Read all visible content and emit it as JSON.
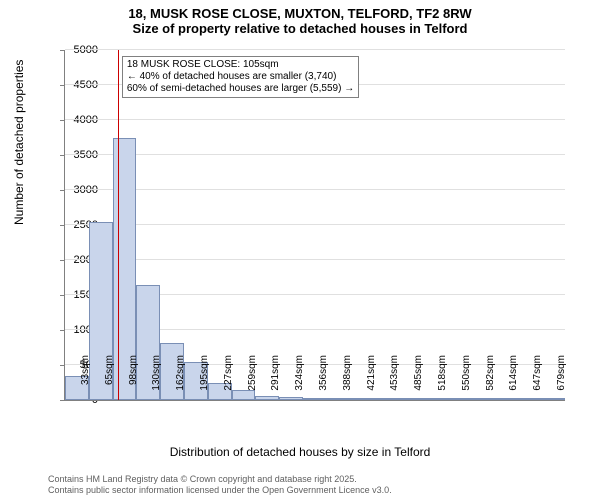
{
  "title": {
    "line1": "18, MUSK ROSE CLOSE, MUXTON, TELFORD, TF2 8RW",
    "line2": "Size of property relative to detached houses in Telford"
  },
  "chart": {
    "type": "histogram",
    "background_color": "#ffffff",
    "grid_color": "#e0e0e0",
    "axis_color": "#808080",
    "bar_fill": "#c9d5eb",
    "bar_border": "#7a8fb5",
    "ref_line_color": "#cc0000",
    "ylabel": "Number of detached properties",
    "xlabel": "Distribution of detached houses by size in Telford",
    "ylim": [
      0,
      5000
    ],
    "ytick_step": 500,
    "x_categories": [
      "33sqm",
      "65sqm",
      "98sqm",
      "130sqm",
      "162sqm",
      "195sqm",
      "227sqm",
      "259sqm",
      "291sqm",
      "324sqm",
      "356sqm",
      "388sqm",
      "421sqm",
      "453sqm",
      "485sqm",
      "518sqm",
      "550sqm",
      "582sqm",
      "614sqm",
      "647sqm",
      "679sqm"
    ],
    "values": [
      350,
      2550,
      3740,
      1650,
      820,
      550,
      250,
      150,
      60,
      40,
      30,
      15,
      10,
      8,
      5,
      5,
      3,
      3,
      2,
      2,
      1
    ],
    "ref_line_category_index": 2,
    "ref_line_position_in_bin": 0.22,
    "title_fontsize": 13,
    "label_fontsize": 12,
    "tick_fontsize": 11,
    "xtick_fontsize": 10
  },
  "annotation": {
    "line1": "18 MUSK ROSE CLOSE: 105sqm",
    "line2": "← 40% of detached houses are smaller (3,740)",
    "line3": "60% of semi-detached houses are larger (5,559) →"
  },
  "footer": {
    "line1": "Contains HM Land Registry data © Crown copyright and database right 2025.",
    "line2": "Contains public sector information licensed under the Open Government Licence v3.0."
  }
}
